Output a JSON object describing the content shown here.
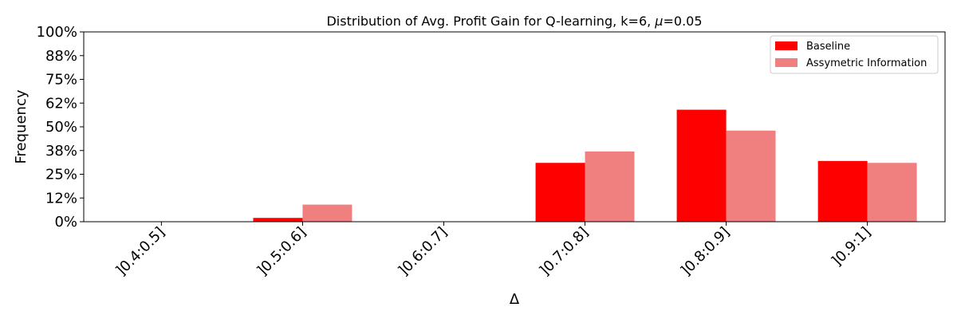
{
  "chart_data": {
    "type": "bar",
    "title": "Distribution of Avg. Profit Gain for Q-learning, k=6, μ=0.05",
    "title_parts": {
      "prefix": "Distribution of Avg. Profit Gain for Q-learning, k=6, ",
      "symbol": "μ",
      "suffix": "=0.05"
    },
    "xlabel": "Δ",
    "ylabel": "Frequency",
    "categories": [
      "]0.4:0.5]",
      "]0.5:0.6]",
      "]0.6:0.7]",
      "]0.7:0.8]",
      "]0.8:0.9]",
      "]0.9:1]"
    ],
    "series": [
      {
        "name": "Baseline",
        "color": "#ff0000",
        "values": [
          0,
          0.02,
          0,
          0.31,
          0.59,
          0.32
        ]
      },
      {
        "name": "Assymetric Information",
        "color": "#f08080",
        "values": [
          0,
          0.09,
          0,
          0.37,
          0.48,
          0.31
        ]
      }
    ],
    "ylim": [
      0,
      1
    ],
    "yticks": [
      0,
      0.125,
      0.25,
      0.375,
      0.5,
      0.625,
      0.75,
      0.875,
      1
    ],
    "ytick_labels": [
      "0%",
      "12%",
      "25%",
      "38%",
      "50%",
      "62%",
      "75%",
      "88%",
      "100%"
    ],
    "grid": false,
    "legend_position": "top-right"
  }
}
